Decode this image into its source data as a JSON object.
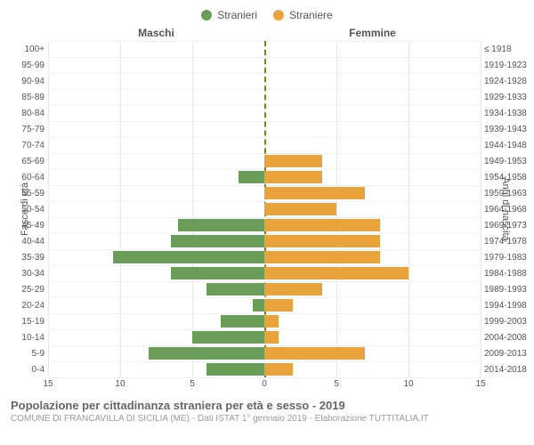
{
  "chart": {
    "type": "population-pyramid",
    "legend": [
      {
        "label": "Stranieri",
        "color": "#6a9e58"
      },
      {
        "label": "Straniere",
        "color": "#e8a33d"
      }
    ],
    "header_left": "Maschi",
    "header_right": "Femmine",
    "yaxis_left_title": "Fasce di età",
    "yaxis_right_title": "Anni di nascita",
    "age_labels": [
      "100+",
      "95-99",
      "90-94",
      "85-89",
      "80-84",
      "75-79",
      "70-74",
      "65-69",
      "60-64",
      "55-59",
      "50-54",
      "45-49",
      "40-44",
      "35-39",
      "30-34",
      "25-29",
      "20-24",
      "15-19",
      "10-14",
      "5-9",
      "0-4"
    ],
    "birth_labels": [
      "≤ 1918",
      "1919-1923",
      "1924-1928",
      "1929-1933",
      "1934-1938",
      "1939-1943",
      "1944-1948",
      "1949-1953",
      "1954-1958",
      "1959-1963",
      "1964-1968",
      "1969-1973",
      "1974-1978",
      "1979-1983",
      "1984-1988",
      "1989-1993",
      "1994-1998",
      "1999-2003",
      "2004-2008",
      "2009-2013",
      "2014-2018"
    ],
    "male_values": [
      0,
      0,
      0,
      0,
      0,
      0,
      0,
      0,
      1.8,
      0,
      0,
      6,
      6.5,
      10.5,
      6.5,
      4,
      0.8,
      3,
      5,
      8,
      4
    ],
    "female_values": [
      0,
      0,
      0,
      0,
      0,
      0,
      0,
      4,
      4,
      7,
      5,
      8,
      8,
      8,
      10,
      4,
      2,
      1,
      1,
      7,
      2
    ],
    "male_color": "#6a9e58",
    "female_color": "#e8a33d",
    "xmax": 15,
    "xtick_step": 5,
    "xticks": [
      15,
      10,
      5,
      0,
      5,
      10,
      15
    ],
    "background_color": "#ffffff",
    "grid_color": "#e8e8e8"
  },
  "footer": {
    "title": "Popolazione per cittadinanza straniera per età e sesso - 2019",
    "subtitle": "COMUNE DI FRANCAVILLA DI SICILIA (ME) - Dati ISTAT 1° gennaio 2019 - Elaborazione TUTTITALIA.IT"
  }
}
